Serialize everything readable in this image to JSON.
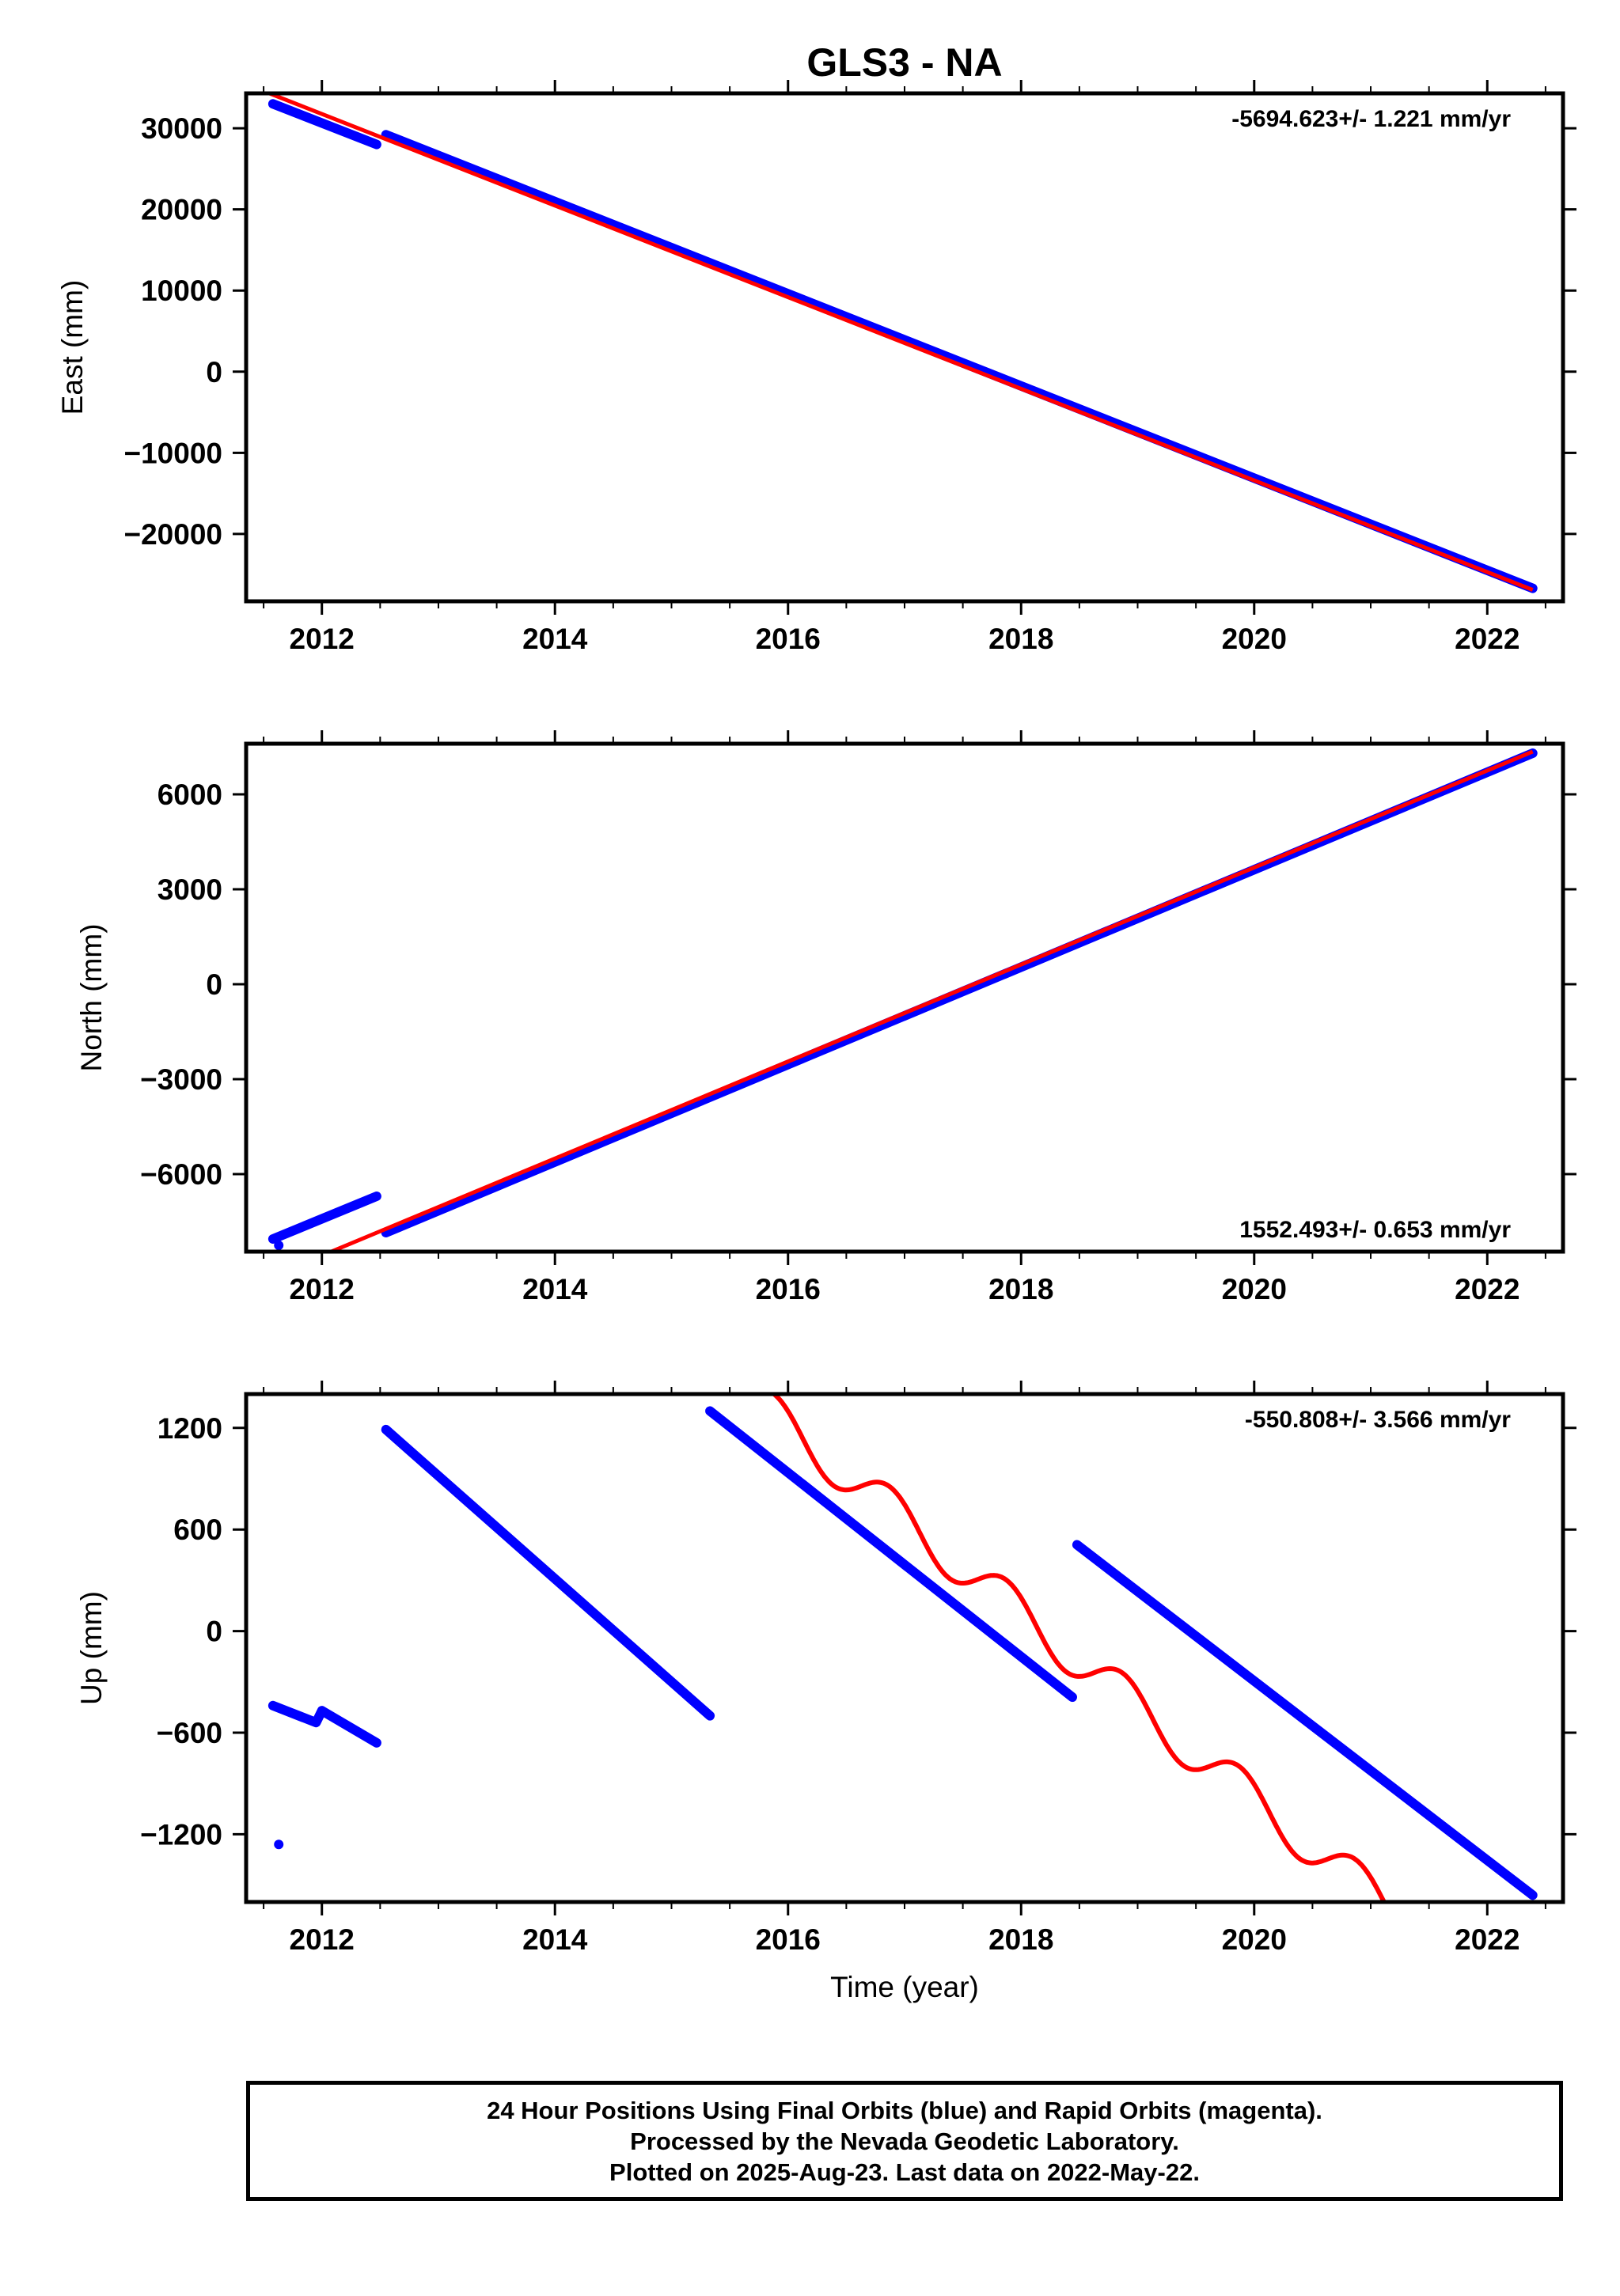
{
  "title": "GLS3 - NA",
  "xlabel": "Time (year)",
  "footer": {
    "line1": "24 Hour Positions Using Final Orbits (blue) and Rapid Orbits (magenta).",
    "line2": "Processed by the Nevada Geodetic Laboratory.",
    "line3": "Plotted on 2025-Aug-23. Last data on 2022-May-22."
  },
  "colors": {
    "final_orbits": "#0000ff",
    "fit": "#ff0000",
    "axes": "#000000"
  },
  "chart_data": [
    {
      "type": "scatter",
      "ylabel": "East (mm)",
      "rate": "-5694.623+/- 1.221 mm/yr",
      "rate_position": "top-right",
      "xlim": [
        2011.35,
        2022.65
      ],
      "ylim": [
        -28300,
        34300
      ],
      "xticks": [
        2012,
        2014,
        2016,
        2018,
        2020,
        2022
      ],
      "yticks": [
        30000,
        20000,
        10000,
        0,
        -10000,
        -20000
      ],
      "ytick_labels": [
        "30000",
        "20000",
        "10000",
        "0",
        "−10000",
        "−20000"
      ],
      "grid": false,
      "series": [
        {
          "values": [
            [
              2011.58,
              33000
            ],
            [
              2012.47,
              28000
            ]
          ]
        },
        {
          "values": [
            [
              2012.55,
              29200
            ],
            [
              2022.39,
              -26700
            ]
          ]
        }
      ],
      "fit": [
        [
          2011.55,
          34300
        ],
        [
          2022.39,
          -26900
        ]
      ]
    },
    {
      "type": "scatter",
      "ylabel": "North (mm)",
      "rate": "1552.493+/- 0.653 mm/yr",
      "rate_position": "bottom-right",
      "xlim": [
        2011.35,
        2022.65
      ],
      "ylim": [
        -8450,
        7600
      ],
      "xticks": [
        2012,
        2014,
        2016,
        2018,
        2020,
        2022
      ],
      "yticks": [
        6000,
        3000,
        0,
        -3000,
        -6000
      ],
      "ytick_labels": [
        "6000",
        "3000",
        "0",
        "−3000",
        "−6000"
      ],
      "grid": false,
      "series": [
        {
          "values": [
            [
              2011.58,
              -8050
            ],
            [
              2012.47,
              -6700
            ]
          ]
        },
        {
          "values": [
            [
              2012.55,
              -7850
            ],
            [
              2022.39,
              7300
            ]
          ]
        }
      ],
      "outliers": [
        [
          2011.63,
          -8250
        ]
      ],
      "fit": [
        [
          2012.08,
          -8450
        ],
        [
          2022.39,
          7350
        ]
      ]
    },
    {
      "type": "scatter",
      "ylabel": "Up (mm)",
      "rate": "-550.808+/- 3.566 mm/yr",
      "rate_position": "top-right",
      "xlim": [
        2011.35,
        2022.65
      ],
      "ylim": [
        -1600,
        1400
      ],
      "xticks": [
        2012,
        2014,
        2016,
        2018,
        2020,
        2022
      ],
      "yticks": [
        1200,
        600,
        0,
        -600,
        -1200
      ],
      "ytick_labels": [
        "1200",
        "600",
        "0",
        "−600",
        "−1200"
      ],
      "grid": false,
      "series": [
        {
          "values": [
            [
              2011.58,
              -440
            ],
            [
              2011.95,
              -540
            ],
            [
              2012.0,
              -470
            ],
            [
              2012.47,
              -660
            ]
          ]
        },
        {
          "values": [
            [
              2012.55,
              1190
            ],
            [
              2015.33,
              -500
            ]
          ]
        },
        {
          "values": [
            [
              2015.33,
              1300
            ],
            [
              2018.44,
              -390
            ]
          ]
        },
        {
          "values": [
            [
              2018.48,
              510
            ],
            [
              2022.39,
              -1560
            ]
          ]
        }
      ],
      "outliers": [
        [
          2011.63,
          -1260
        ]
      ],
      "fit": {
        "x_start": 2015.88,
        "x_end": 2021.12,
        "y_start": 1400,
        "slope": -550.808,
        "wiggle_amplitude": 130
      }
    }
  ]
}
